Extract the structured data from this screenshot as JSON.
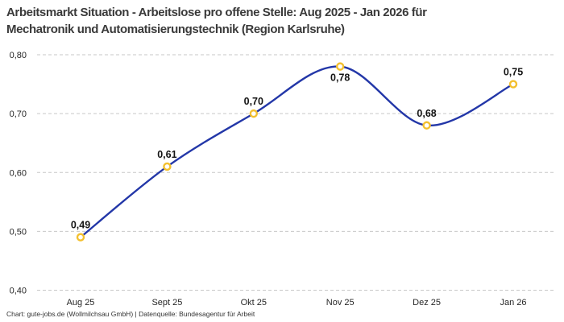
{
  "header": {
    "title_line1": "Arbeitsmarkt Situation - Arbeitslose pro offene Stelle: Aug 2025 - Jan 2026 für",
    "title_line2": "Mechatronik und Automatisierungstechnik (Region Karlsruhe)"
  },
  "footer": {
    "credit": "Chart: gute-jobs.de (Wollmilchsau GmbH) | Datenquelle: Bundesagentur für Arbeit"
  },
  "colors": {
    "line": "#2337a8",
    "marker_ring": "#f3c02f",
    "marker_fill": "#ffffff",
    "grid": "#c7c7c7",
    "axis_text": "#262626",
    "data_label": "#141414",
    "title_text": "#3a3a3a",
    "background": "#ffffff"
  },
  "chart_data": {
    "type": "line",
    "title": "Arbeitsmarkt Situation - Arbeitslose pro offene Stelle: Aug 2025 - Jan 2026 für Mechatronik und Automatisierungstechnik (Region Karlsruhe)",
    "categories": [
      "Aug 25",
      "Sept 25",
      "Okt 25",
      "Nov 25",
      "Dez 25",
      "Jan 26"
    ],
    "values": [
      0.49,
      0.61,
      0.7,
      0.78,
      0.68,
      0.75
    ],
    "value_labels": [
      "0,49",
      "0,61",
      "0,70",
      "0,78",
      "0,68",
      "0,75"
    ],
    "label_positions": [
      "above",
      "above",
      "above",
      "below",
      "above",
      "above"
    ],
    "y_tick_labels": [
      "0,80",
      "0,70",
      "0,60",
      "0,50",
      "0,40"
    ],
    "y_tick_values": [
      0.8,
      0.7,
      0.6,
      0.5,
      0.4
    ],
    "ylim": [
      0.4,
      0.8
    ],
    "xlabel": "",
    "ylabel": "",
    "grid": "horizontal-dashed",
    "legend": "none",
    "smooth": true,
    "marker": "open-circle"
  }
}
